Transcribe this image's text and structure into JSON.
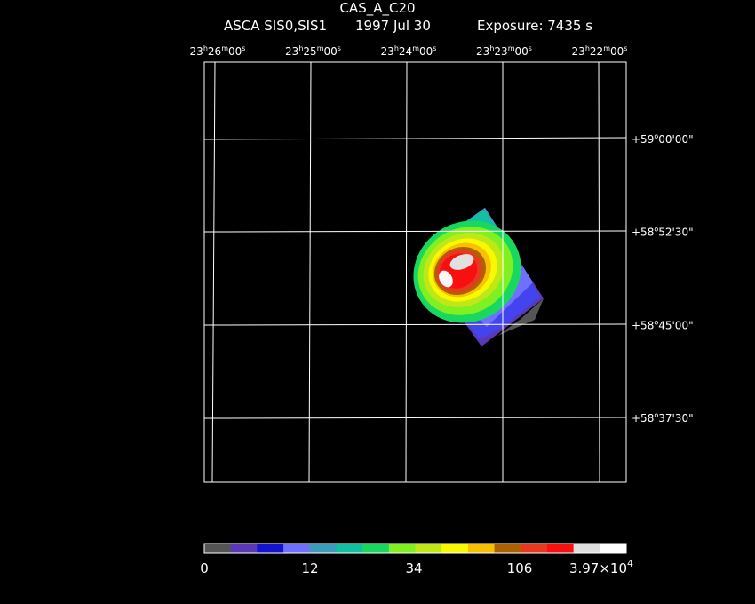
{
  "header": {
    "title": "CAS_A_C20",
    "instrument": "ASCA SIS0,SIS1",
    "date": "1997 Jul 30",
    "exposure": "Exposure: 7435 s"
  },
  "chart_data": {
    "type": "heatmap",
    "title": "CAS_A_C20",
    "grid": true,
    "ra_ticks": [
      {
        "h": "23",
        "m": "26",
        "s": "00"
      },
      {
        "h": "23",
        "m": "25",
        "s": "00"
      },
      {
        "h": "23",
        "m": "24",
        "s": "00"
      },
      {
        "h": "23",
        "m": "23",
        "s": "00"
      },
      {
        "h": "23",
        "m": "22",
        "s": "00"
      }
    ],
    "dec_ticks": [
      {
        "sign": "+",
        "d": "59",
        "m": "00",
        "s": "00"
      },
      {
        "sign": "+",
        "d": "58",
        "m": "52",
        "s": "30"
      },
      {
        "sign": "+",
        "d": "58",
        "m": "45",
        "s": "00"
      },
      {
        "sign": "+",
        "d": "58",
        "m": "37",
        "s": "30"
      }
    ],
    "colorbar": {
      "colors": [
        "#555555",
        "#5a38b8",
        "#1414d0",
        "#7070ff",
        "#3c9cbc",
        "#10c0a0",
        "#18d860",
        "#80f020",
        "#c0e818",
        "#f8f800",
        "#f8c000",
        "#b06000",
        "#e83820",
        "#f81010",
        "#e0e0e0",
        "#ffffff"
      ],
      "tick_labels": [
        "0",
        "12",
        "34",
        "106"
      ],
      "max_label": {
        "mantissa": "3.97×10",
        "exponent": "4"
      }
    }
  }
}
